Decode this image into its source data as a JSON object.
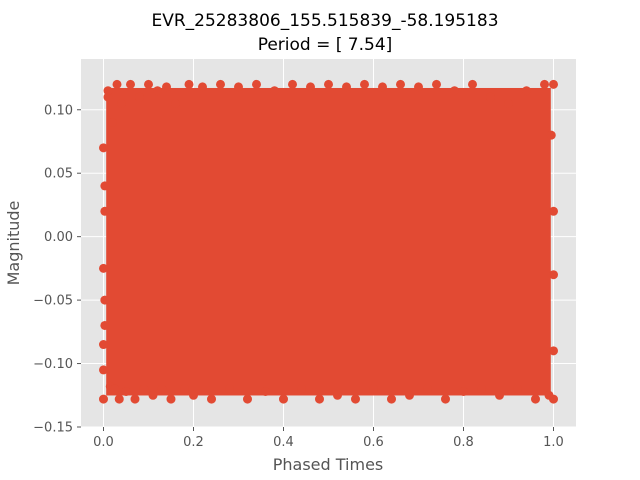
{
  "chart_data": {
    "type": "scatter",
    "title": "EVR_25283806_155.515839_-58.195183",
    "subtitle": "Period = [ 7.54]",
    "xlabel": "Phased Times",
    "ylabel": "Magnitude",
    "xlim": [
      -0.05,
      1.05
    ],
    "ylim": [
      -0.15,
      0.14
    ],
    "xticks": [
      0.0,
      0.2,
      0.4,
      0.6,
      0.8,
      1.0
    ],
    "xtick_labels": [
      "0.0",
      "0.2",
      "0.4",
      "0.6",
      "0.8",
      "1.0"
    ],
    "yticks": [
      -0.15,
      -0.1,
      -0.05,
      0.0,
      0.05,
      0.1
    ],
    "ytick_labels": [
      "−0.15",
      "−0.10",
      "−0.05",
      "0.00",
      "0.05",
      "0.10"
    ],
    "grid": true,
    "style": "ggplot",
    "background_color": "#e5e5e5",
    "marker_color": "#e24a33",
    "points": [
      [
        0.0,
        -0.025
      ],
      [
        0.0,
        -0.085
      ],
      [
        0.0,
        -0.105
      ],
      [
        0.0,
        0.07
      ],
      [
        0.0,
        -0.128
      ],
      [
        0.01,
        0.11
      ],
      [
        0.01,
        0.115
      ],
      [
        0.015,
        -0.118
      ],
      [
        0.02,
        0.09
      ],
      [
        0.025,
        -0.12
      ],
      [
        0.03,
        0.12
      ],
      [
        0.035,
        -0.128
      ],
      [
        0.04,
        0.105
      ],
      [
        0.05,
        -0.122
      ],
      [
        0.06,
        0.12
      ],
      [
        0.07,
        -0.128
      ],
      [
        0.08,
        0.11
      ],
      [
        0.09,
        -0.12
      ],
      [
        0.1,
        0.12
      ],
      [
        0.11,
        -0.125
      ],
      [
        0.12,
        0.115
      ],
      [
        0.13,
        -0.12
      ],
      [
        0.14,
        0.118
      ],
      [
        0.15,
        -0.128
      ],
      [
        0.16,
        0.105
      ],
      [
        0.18,
        -0.12
      ],
      [
        0.19,
        0.12
      ],
      [
        0.2,
        -0.125
      ],
      [
        0.22,
        0.118
      ],
      [
        0.24,
        -0.128
      ],
      [
        0.26,
        0.12
      ],
      [
        0.28,
        -0.12
      ],
      [
        0.3,
        0.118
      ],
      [
        0.32,
        -0.128
      ],
      [
        0.34,
        0.12
      ],
      [
        0.36,
        -0.122
      ],
      [
        0.38,
        0.115
      ],
      [
        0.4,
        -0.128
      ],
      [
        0.42,
        0.12
      ],
      [
        0.44,
        -0.12
      ],
      [
        0.46,
        0.118
      ],
      [
        0.48,
        -0.128
      ],
      [
        0.5,
        0.12
      ],
      [
        0.52,
        -0.125
      ],
      [
        0.54,
        0.118
      ],
      [
        0.56,
        -0.128
      ],
      [
        0.58,
        0.12
      ],
      [
        0.6,
        -0.12
      ],
      [
        0.62,
        0.118
      ],
      [
        0.64,
        -0.128
      ],
      [
        0.66,
        0.12
      ],
      [
        0.68,
        -0.125
      ],
      [
        0.7,
        0.118
      ],
      [
        0.72,
        -0.12
      ],
      [
        0.74,
        0.12
      ],
      [
        0.76,
        -0.128
      ],
      [
        0.78,
        0.115
      ],
      [
        0.8,
        -0.122
      ],
      [
        0.82,
        0.12
      ],
      [
        0.84,
        -0.12
      ],
      [
        0.86,
        0.11
      ],
      [
        0.88,
        -0.125
      ],
      [
        0.9,
        0.105
      ],
      [
        0.92,
        -0.12
      ],
      [
        0.94,
        0.115
      ],
      [
        0.96,
        -0.128
      ],
      [
        0.98,
        0.12
      ],
      [
        0.99,
        -0.125
      ],
      [
        1.0,
        0.12
      ],
      [
        1.0,
        -0.128
      ],
      [
        1.0,
        -0.09
      ],
      [
        1.0,
        -0.03
      ],
      [
        1.0,
        0.02
      ],
      [
        0.995,
        0.08
      ],
      [
        0.003,
        0.02
      ],
      [
        0.003,
        -0.05
      ],
      [
        0.003,
        0.04
      ],
      [
        0.003,
        -0.07
      ]
    ]
  }
}
